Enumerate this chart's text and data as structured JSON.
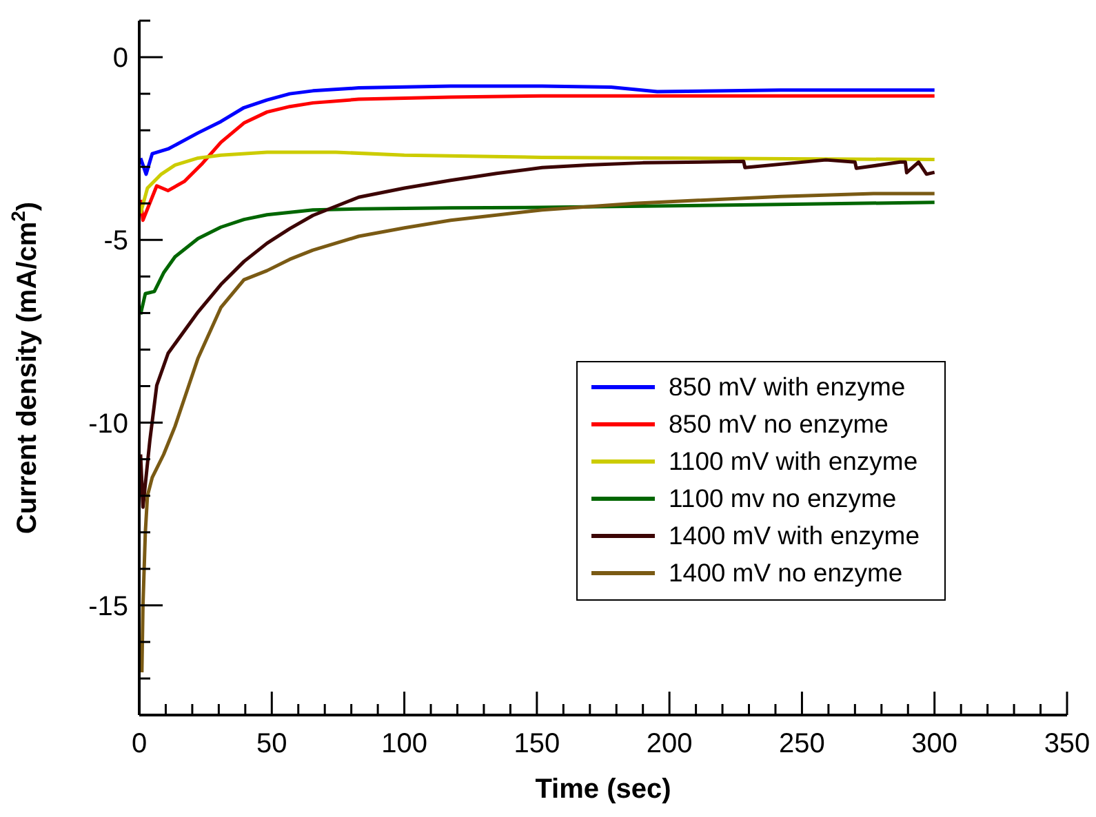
{
  "chart_data": {
    "type": "line",
    "xlabel": "Time (sec)",
    "ylabel": "Current density (mA/cm$^{2}$)",
    "xlim": [
      0,
      350
    ],
    "ylim": [
      -18,
      1
    ],
    "xticks": [
      0,
      {
        "value": 10,
        "label": null
      },
      {
        "value": 20,
        "label": null
      },
      {
        "value": 30,
        "label": null
      },
      {
        "value": 40,
        "label": null
      },
      50,
      {
        "value": 60,
        "label": null
      },
      {
        "value": 70,
        "label": null
      },
      {
        "value": 80,
        "label": null
      },
      {
        "value": 90,
        "label": null
      },
      100,
      {
        "value": 110,
        "label": null
      },
      {
        "value": 120,
        "label": null
      },
      {
        "value": 130,
        "label": null
      },
      {
        "value": 140,
        "label": null
      },
      150,
      {
        "value": 160,
        "label": null
      },
      {
        "value": 170,
        "label": null
      },
      {
        "value": 180,
        "label": null
      },
      {
        "value": 190,
        "label": null
      },
      200,
      {
        "value": 210,
        "label": null
      },
      {
        "value": 220,
        "label": null
      },
      {
        "value": 230,
        "label": null
      },
      {
        "value": 240,
        "label": null
      },
      250,
      {
        "value": 260,
        "label": null
      },
      {
        "value": 270,
        "label": null
      },
      {
        "value": 280,
        "label": null
      },
      {
        "value": 290,
        "label": null
      },
      300,
      {
        "value": 310,
        "label": null
      },
      {
        "value": 320,
        "label": null
      },
      {
        "value": 330,
        "label": null
      },
      {
        "value": 340,
        "label": null
      },
      350
    ],
    "yticks": [
      {
        "value": 1,
        "label": null
      },
      0,
      {
        "value": -1,
        "label": null
      },
      {
        "value": -2,
        "label": null
      },
      {
        "value": -3,
        "label": null
      },
      {
        "value": -4,
        "label": null
      },
      -5,
      {
        "value": -6,
        "label": null
      },
      {
        "value": -7,
        "label": null
      },
      {
        "value": -8,
        "label": null
      },
      {
        "value": -9,
        "label": null
      },
      -10,
      {
        "value": -11,
        "label": null
      },
      {
        "value": -12,
        "label": null
      },
      {
        "value": -13,
        "label": null
      },
      {
        "value": -14,
        "label": null
      },
      -15,
      {
        "value": -16,
        "label": null
      },
      {
        "value": -17,
        "label": null
      },
      {
        "value": -18,
        "label": null
      }
    ],
    "grid": false,
    "legend": "bottom right",
    "marker": "none",
    "line_style": "solid",
    "series": [
      {
        "name": "850 mV with enzyme",
        "color": "#0000ff",
        "x": [
          0.5,
          2.6,
          4.9,
          10.9,
          22.2,
          30.8,
          39.5,
          48.2,
          56.8,
          65.5,
          82.8,
          117.5,
          152,
          178,
          195.4,
          242,
          300
        ],
        "values": [
          -2.76,
          -3.2,
          -2.64,
          -2.51,
          -2.07,
          -1.76,
          -1.38,
          -1.17,
          -1.0,
          -0.92,
          -0.84,
          -0.79,
          -0.79,
          -0.82,
          -0.94,
          -0.9,
          -0.9
        ]
      },
      {
        "name": "850 mV no enzyme",
        "color": "#ff0000",
        "x": [
          0.5,
          1.4,
          6.6,
          10.9,
          17,
          23.9,
          30.8,
          39.5,
          48.2,
          56.8,
          65.5,
          82.8,
          117.5,
          152,
          300
        ],
        "values": [
          -3.9,
          -4.46,
          -3.52,
          -3.65,
          -3.4,
          -2.9,
          -2.33,
          -1.8,
          -1.5,
          -1.35,
          -1.25,
          -1.15,
          -1.09,
          -1.06,
          -1.06
        ]
      },
      {
        "name": "1100 mV with enzyme",
        "color": "#cccc00",
        "x": [
          0.5,
          3.1,
          8.3,
          13.5,
          22.2,
          30.8,
          48.2,
          74.2,
          100,
          152,
          300
        ],
        "values": [
          -4.27,
          -3.58,
          -3.2,
          -2.95,
          -2.76,
          -2.68,
          -2.6,
          -2.6,
          -2.68,
          -2.74,
          -2.8
        ]
      },
      {
        "name": "1100 mv no enzyme",
        "color": "#006600",
        "x": [
          0.5,
          2.3,
          5.7,
          9.2,
          13.5,
          22.2,
          30.8,
          39.5,
          48.2,
          65.5,
          82.8,
          117.5,
          152,
          242,
          300
        ],
        "values": [
          -7.04,
          -6.47,
          -6.41,
          -5.9,
          -5.46,
          -4.96,
          -4.65,
          -4.44,
          -4.31,
          -4.18,
          -4.15,
          -4.12,
          -4.11,
          -4.03,
          -3.97
        ]
      },
      {
        "name": "1400 mV with enzyme",
        "color": "#3c0505",
        "x": [
          0.5,
          1.4,
          4.0,
          6.6,
          10.9,
          22.2,
          30.8,
          39.5,
          48.2,
          56.8,
          65.5,
          82.8,
          100.1,
          117.5,
          134.8,
          152,
          169.4,
          190,
          228,
          228.5,
          259,
          270,
          270.5,
          287,
          289,
          289.5,
          294,
          297,
          300
        ],
        "values": [
          -10.87,
          -12.31,
          -10.49,
          -8.98,
          -8.1,
          -6.97,
          -6.22,
          -5.59,
          -5.09,
          -4.69,
          -4.33,
          -3.83,
          -3.58,
          -3.37,
          -3.18,
          -3.02,
          -2.95,
          -2.89,
          -2.85,
          -3.02,
          -2.81,
          -2.87,
          -3.04,
          -2.87,
          -2.87,
          -3.16,
          -2.87,
          -3.2,
          -3.15
        ]
      },
      {
        "name": "1400 mV no enzyme",
        "color": "#7a5a14",
        "x": [
          1.0,
          1.4,
          2.3,
          3.1,
          4.9,
          9.2,
          13.5,
          18.7,
          22.2,
          30.8,
          39.5,
          48.2,
          56.8,
          65.5,
          82.8,
          100.1,
          117.5,
          152,
          186.7,
          242,
          277,
          300
        ],
        "values": [
          -16.83,
          -15.01,
          -13.0,
          -12.0,
          -11.5,
          -10.87,
          -10.1,
          -8.98,
          -8.23,
          -6.85,
          -6.09,
          -5.84,
          -5.53,
          -5.28,
          -4.9,
          -4.67,
          -4.46,
          -4.18,
          -4.0,
          -3.81,
          -3.73,
          -3.73
        ]
      }
    ]
  }
}
